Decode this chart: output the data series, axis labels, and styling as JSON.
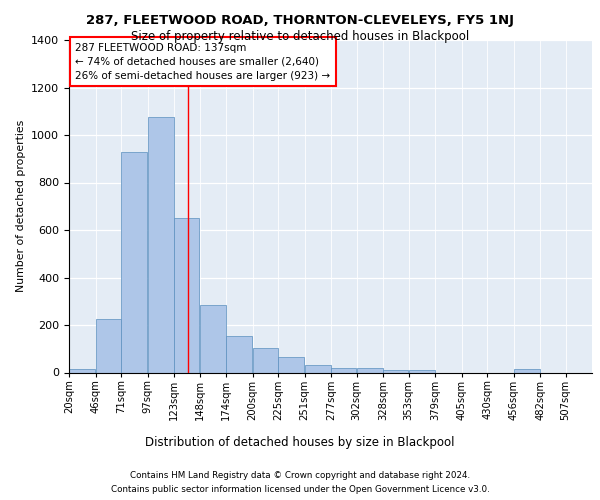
{
  "title1": "287, FLEETWOOD ROAD, THORNTON-CLEVELEYS, FY5 1NJ",
  "title2": "Size of property relative to detached houses in Blackpool",
  "xlabel": "Distribution of detached houses by size in Blackpool",
  "ylabel": "Number of detached properties",
  "footnote1": "Contains HM Land Registry data © Crown copyright and database right 2024.",
  "footnote2": "Contains public sector information licensed under the Open Government Licence v3.0.",
  "annotation_line1": "287 FLEETWOOD ROAD: 137sqm",
  "annotation_line2": "← 74% of detached houses are smaller (2,640)",
  "annotation_line3": "26% of semi-detached houses are larger (923) →",
  "bins": [
    20,
    46,
    71,
    97,
    123,
    148,
    174,
    200,
    225,
    251,
    277,
    302,
    328,
    353,
    379,
    405,
    430,
    456,
    482,
    507,
    533
  ],
  "counts": [
    15,
    225,
    930,
    1075,
    650,
    285,
    155,
    105,
    65,
    32,
    20,
    20,
    12,
    12,
    0,
    0,
    0,
    15,
    0,
    0
  ],
  "bar_color": "#aec6e8",
  "bar_edge_color": "#5a8fbe",
  "bg_color": "#e4ecf5",
  "red_line_x": 137,
  "ylim": [
    0,
    1400
  ],
  "yticks": [
    0,
    200,
    400,
    600,
    800,
    1000,
    1200,
    1400
  ]
}
